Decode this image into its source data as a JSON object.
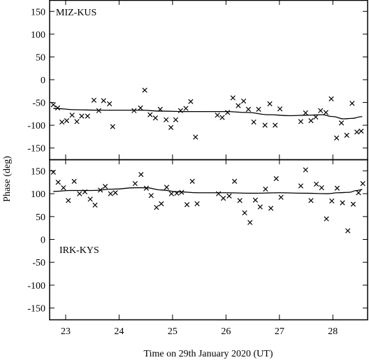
{
  "figure": {
    "ylabel": "Phase (deg)",
    "xlabel": "Time on 29th January 2020 (UT)"
  },
  "chart_data": [
    {
      "type": "scatter",
      "title": "MIZ-KUS",
      "xlim": [
        22.7,
        28.65
      ],
      "ylim": [
        -175,
        175
      ],
      "yticks": [
        -150,
        -100,
        -50,
        0,
        50,
        100,
        150
      ],
      "xticks": [
        23,
        24,
        25,
        26,
        27,
        28
      ],
      "series": [
        {
          "marker": "x",
          "points": [
            [
              22.77,
              -55
            ],
            [
              22.85,
              -62
            ],
            [
              22.93,
              -93
            ],
            [
              23.02,
              -90
            ],
            [
              23.12,
              -78
            ],
            [
              23.21,
              -92
            ],
            [
              23.3,
              -80
            ],
            [
              23.41,
              -80
            ],
            [
              23.53,
              -45
            ],
            [
              23.62,
              -68
            ],
            [
              23.71,
              -46
            ],
            [
              23.82,
              -53
            ],
            [
              23.88,
              -103
            ],
            [
              24.28,
              -68
            ],
            [
              24.4,
              -62
            ],
            [
              24.48,
              -23
            ],
            [
              24.58,
              -77
            ],
            [
              24.68,
              -84
            ],
            [
              24.77,
              -65
            ],
            [
              24.88,
              -88
            ],
            [
              24.97,
              -105
            ],
            [
              25.06,
              -88
            ],
            [
              25.15,
              -68
            ],
            [
              25.25,
              -63
            ],
            [
              25.34,
              -48
            ],
            [
              25.43,
              -126
            ],
            [
              25.84,
              -78
            ],
            [
              25.93,
              -83
            ],
            [
              26.03,
              -72
            ],
            [
              26.13,
              -40
            ],
            [
              26.23,
              -57
            ],
            [
              26.33,
              -47
            ],
            [
              26.42,
              -65
            ],
            [
              26.52,
              -93
            ],
            [
              26.61,
              -65
            ],
            [
              26.73,
              -100
            ],
            [
              26.82,
              -53
            ],
            [
              26.92,
              -100
            ],
            [
              27.01,
              -64
            ],
            [
              27.4,
              -92
            ],
            [
              27.49,
              -73
            ],
            [
              27.59,
              -90
            ],
            [
              27.68,
              -82
            ],
            [
              27.77,
              -68
            ],
            [
              27.87,
              -72
            ],
            [
              27.97,
              -42
            ],
            [
              28.07,
              -128
            ],
            [
              28.16,
              -95
            ],
            [
              28.26,
              -122
            ],
            [
              28.36,
              -52
            ],
            [
              28.45,
              -115
            ],
            [
              28.53,
              -113
            ]
          ]
        },
        {
          "style": "line",
          "points": [
            [
              22.77,
              -63
            ],
            [
              23.2,
              -66
            ],
            [
              23.6,
              -67
            ],
            [
              24.0,
              -67
            ],
            [
              24.4,
              -67
            ],
            [
              24.8,
              -69
            ],
            [
              25.2,
              -70
            ],
            [
              25.6,
              -70
            ],
            [
              26.0,
              -70
            ],
            [
              26.4,
              -72
            ],
            [
              26.8,
              -77
            ],
            [
              27.2,
              -79
            ],
            [
              27.5,
              -78
            ],
            [
              27.8,
              -77
            ],
            [
              28.0,
              -81
            ],
            [
              28.2,
              -86
            ],
            [
              28.35,
              -85
            ],
            [
              28.55,
              -81
            ]
          ]
        }
      ]
    },
    {
      "type": "scatter",
      "title": "IRK-KYS",
      "xlim": [
        22.7,
        28.65
      ],
      "ylim": [
        -175,
        175
      ],
      "yticks": [
        -150,
        -100,
        -50,
        0,
        50,
        100,
        150
      ],
      "xticks": [
        23,
        24,
        25,
        26,
        27,
        28
      ],
      "series": [
        {
          "marker": "x",
          "points": [
            [
              22.77,
              147
            ],
            [
              22.86,
              125
            ],
            [
              22.96,
              113
            ],
            [
              23.05,
              85
            ],
            [
              23.16,
              127
            ],
            [
              23.26,
              100
            ],
            [
              23.36,
              104
            ],
            [
              23.46,
              88
            ],
            [
              23.55,
              75
            ],
            [
              23.65,
              108
            ],
            [
              23.74,
              116
            ],
            [
              23.84,
              100
            ],
            [
              23.93,
              102
            ],
            [
              24.3,
              122
            ],
            [
              24.41,
              142
            ],
            [
              24.51,
              112
            ],
            [
              24.6,
              96
            ],
            [
              24.7,
              70
            ],
            [
              24.79,
              78
            ],
            [
              24.89,
              114
            ],
            [
              24.98,
              100
            ],
            [
              25.08,
              101
            ],
            [
              25.17,
              103
            ],
            [
              25.27,
              76
            ],
            [
              25.37,
              127
            ],
            [
              25.46,
              78
            ],
            [
              25.86,
              100
            ],
            [
              25.95,
              90
            ],
            [
              26.06,
              95
            ],
            [
              26.16,
              127
            ],
            [
              26.26,
              85
            ],
            [
              26.35,
              58
            ],
            [
              26.45,
              37
            ],
            [
              26.55,
              86
            ],
            [
              26.64,
              71
            ],
            [
              26.74,
              110
            ],
            [
              26.84,
              68
            ],
            [
              26.94,
              133
            ],
            [
              27.03,
              92
            ],
            [
              27.4,
              117
            ],
            [
              27.49,
              152
            ],
            [
              27.59,
              85
            ],
            [
              27.69,
              121
            ],
            [
              27.79,
              113
            ],
            [
              27.88,
              45
            ],
            [
              27.98,
              84
            ],
            [
              28.08,
              112
            ],
            [
              28.18,
              80
            ],
            [
              28.28,
              19
            ],
            [
              28.38,
              77
            ],
            [
              28.48,
              102
            ],
            [
              28.56,
              122
            ]
          ]
        },
        {
          "style": "line",
          "points": [
            [
              22.77,
              105
            ],
            [
              23.1,
              107
            ],
            [
              23.5,
              107
            ],
            [
              23.9,
              110
            ],
            [
              24.3,
              113
            ],
            [
              24.5,
              113
            ],
            [
              24.8,
              108
            ],
            [
              25.1,
              104
            ],
            [
              25.5,
              102
            ],
            [
              26.0,
              102
            ],
            [
              26.5,
              101
            ],
            [
              27.0,
              102
            ],
            [
              27.5,
              101
            ],
            [
              27.9,
              100
            ],
            [
              28.1,
              102
            ],
            [
              28.3,
              103
            ],
            [
              28.45,
              107
            ],
            [
              28.55,
              109
            ]
          ]
        }
      ]
    }
  ]
}
